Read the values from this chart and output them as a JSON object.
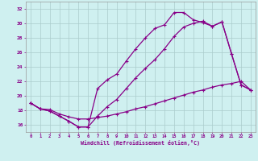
{
  "xlabel": "Windchill (Refroidissement éolien,°C)",
  "bg_color": "#cff0f0",
  "line_color": "#880088",
  "grid_color": "#aacccc",
  "xlim": [
    -0.5,
    23.5
  ],
  "ylim": [
    15.0,
    33.0
  ],
  "xticks": [
    0,
    1,
    2,
    3,
    4,
    5,
    6,
    7,
    8,
    9,
    10,
    11,
    12,
    13,
    14,
    15,
    16,
    17,
    18,
    19,
    20,
    21,
    22,
    23
  ],
  "yticks": [
    16,
    18,
    20,
    22,
    24,
    26,
    28,
    30,
    32
  ],
  "line1_x": [
    0,
    1,
    2,
    3,
    4,
    5,
    6,
    7,
    8,
    9,
    10,
    11,
    12,
    13,
    14,
    15,
    16,
    17,
    18,
    19,
    20,
    21,
    22,
    23
  ],
  "line1_y": [
    19.0,
    18.2,
    18.1,
    17.5,
    17.1,
    16.8,
    16.8,
    17.0,
    17.2,
    17.5,
    17.8,
    18.2,
    18.5,
    18.9,
    19.3,
    19.7,
    20.1,
    20.5,
    20.8,
    21.2,
    21.5,
    21.7,
    22.0,
    20.8
  ],
  "line2_x": [
    0,
    1,
    2,
    3,
    4,
    5,
    6,
    7,
    8,
    9,
    10,
    11,
    12,
    13,
    14,
    15,
    16,
    17,
    18,
    19,
    20,
    21,
    22,
    23
  ],
  "line2_y": [
    19.0,
    18.2,
    17.9,
    17.2,
    16.5,
    15.7,
    15.7,
    21.0,
    22.2,
    23.0,
    24.8,
    26.5,
    28.0,
    29.3,
    29.8,
    31.5,
    31.5,
    30.5,
    30.1,
    29.6,
    30.2,
    25.8,
    21.5,
    20.8
  ],
  "line3_x": [
    0,
    1,
    2,
    3,
    4,
    5,
    6,
    7,
    8,
    9,
    10,
    11,
    12,
    13,
    14,
    15,
    16,
    17,
    18,
    19,
    20,
    21,
    22,
    23
  ],
  "line3_y": [
    19.0,
    18.2,
    17.9,
    17.2,
    16.5,
    15.7,
    15.7,
    17.2,
    18.5,
    19.5,
    21.0,
    22.5,
    23.8,
    25.0,
    26.5,
    28.2,
    29.5,
    30.0,
    30.3,
    29.6,
    30.2,
    25.8,
    21.5,
    20.8
  ]
}
